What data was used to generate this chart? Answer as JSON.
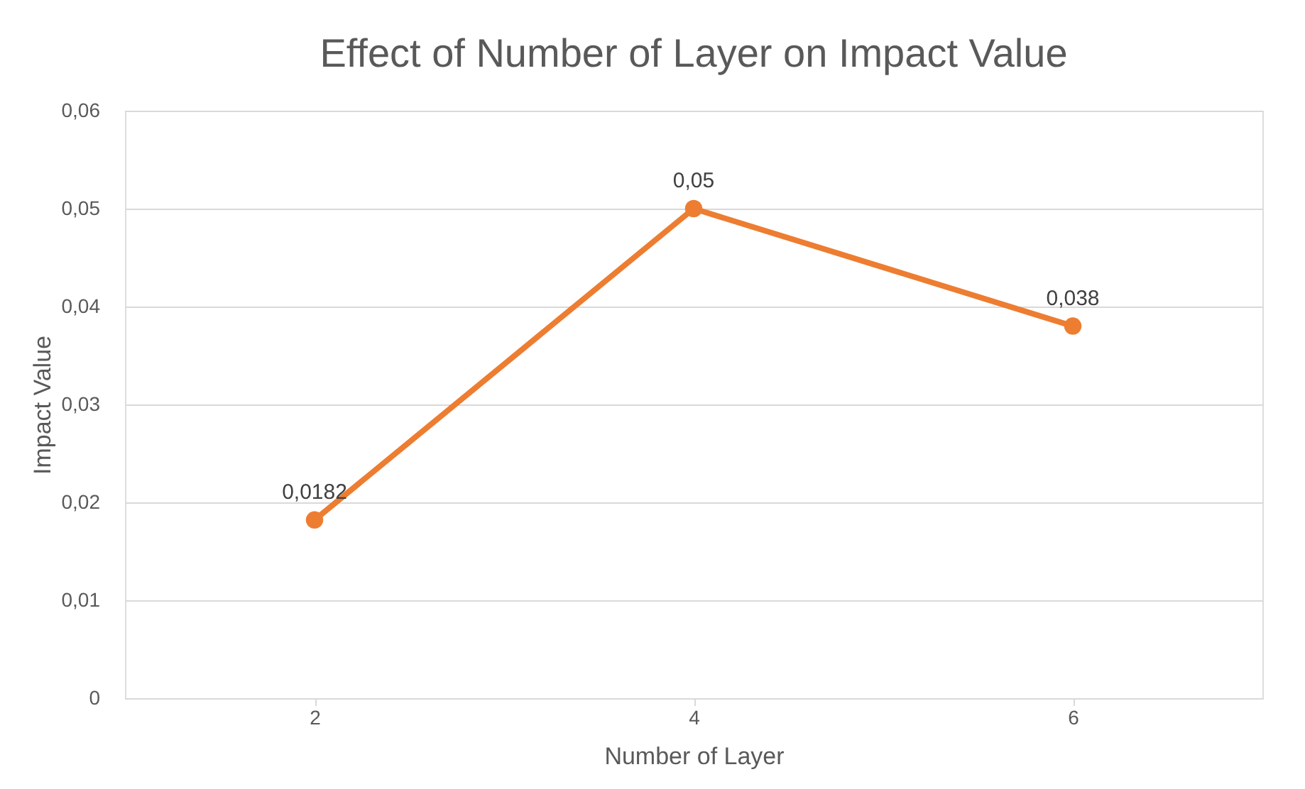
{
  "chart_data": {
    "type": "line",
    "title": "Effect of Number of Layer on Impact Value",
    "xlabel": "Number of Layer",
    "ylabel": "Impact Value",
    "categories": [
      "2",
      "4",
      "6"
    ],
    "series": [
      {
        "color": "#ed7d31",
        "values": [
          0.0182,
          0.05,
          0.038
        ],
        "value_labels": [
          "0,0182",
          "0,05",
          "0,038"
        ]
      }
    ],
    "ylim": [
      0,
      0.06
    ],
    "yticks": [
      0,
      {
        "value": 0.01,
        "label": "0,01"
      },
      {
        "value": 0.02,
        "label": "0,02"
      },
      {
        "value": 0.03,
        "label": "0,03"
      },
      {
        "value": 0.04,
        "label": "0,04"
      },
      {
        "value": 0.05,
        "label": "0,05"
      },
      {
        "value": 0.06,
        "label": "0,06"
      }
    ],
    "grid": "y",
    "marker": "circle",
    "line_style": "solid"
  }
}
